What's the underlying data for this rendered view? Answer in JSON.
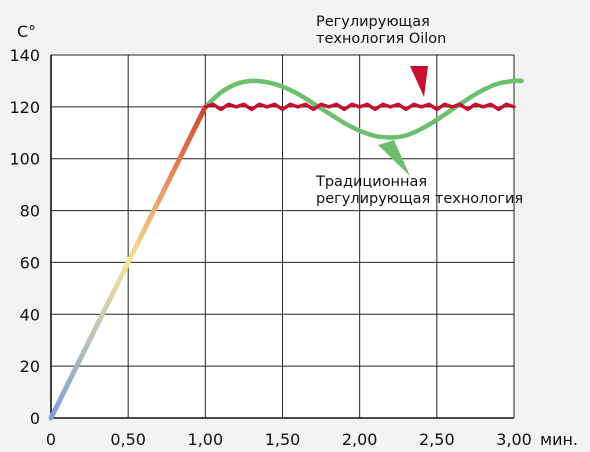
{
  "chart_data": {
    "type": "line",
    "ylabel": "C°",
    "xunit": "мин.",
    "xlim": [
      0,
      3.0
    ],
    "ylim": [
      0,
      140
    ],
    "x_ticks": [
      0,
      0.5,
      1.0,
      1.5,
      2.0,
      2.5,
      3.0
    ],
    "x_tick_labels": [
      "0",
      "0,50",
      "1,00",
      "1,50",
      "2,00",
      "2,50",
      "3,00"
    ],
    "y_ticks": [
      0,
      20,
      40,
      60,
      80,
      100,
      120,
      140
    ],
    "y_tick_labels": [
      "0",
      "20",
      "40",
      "60",
      "80",
      "100",
      "120",
      "140"
    ],
    "grid": true,
    "colors": {
      "oilon": "#c8102e",
      "traditional": "#6cbf6c",
      "ramp_start": "#7f9fd6",
      "ramp_mid": "#f4e59a",
      "ramp_end": "#d2442c",
      "grid": "#222222",
      "plot_bg": "#ffffff"
    },
    "series": [
      {
        "key": "ramp",
        "x": [
          0,
          1.0
        ],
        "values": [
          0,
          120
        ]
      },
      {
        "key": "oilon",
        "name": "Регулирующая технология Oilon",
        "x": [
          1.0,
          1.05,
          1.1,
          1.15,
          1.2,
          1.25,
          1.3,
          1.35,
          1.4,
          1.45,
          1.5,
          1.55,
          1.6,
          1.65,
          1.7,
          1.75,
          1.8,
          1.85,
          1.9,
          1.95,
          2.0,
          2.05,
          2.1,
          2.15,
          2.2,
          2.25,
          2.3,
          2.35,
          2.4,
          2.45,
          2.5,
          2.55,
          2.6,
          2.65,
          2.7,
          2.75,
          2.8,
          2.85,
          2.9,
          2.95,
          3.0
        ],
        "values": [
          120,
          121,
          119,
          121,
          120,
          121,
          119,
          121,
          120,
          121,
          119,
          121,
          120,
          121,
          119,
          121,
          120,
          121,
          119,
          121,
          120,
          121,
          119,
          121,
          120,
          121,
          119,
          121,
          120,
          121,
          119,
          121,
          120,
          121,
          119,
          121,
          120,
          121,
          119,
          121,
          120
        ]
      },
      {
        "key": "traditional",
        "name": "Традиционная регулирующая технология",
        "x": [
          1.0,
          1.1,
          1.2,
          1.3,
          1.4,
          1.5,
          1.6,
          1.7,
          1.8,
          1.9,
          2.0,
          2.1,
          2.2,
          2.3,
          2.4,
          2.5,
          2.6,
          2.7,
          2.8,
          2.9,
          3.0,
          3.05
        ],
        "values": [
          120,
          125.5,
          128.8,
          130,
          129.5,
          127.8,
          125,
          121.3,
          117.5,
          113.8,
          110.8,
          108.8,
          108.2,
          109,
          111.5,
          115,
          119,
          123,
          126.5,
          129,
          130,
          130
        ]
      }
    ],
    "annotations": {
      "oilon": [
        "Регулирующая",
        "технология Oilon"
      ],
      "traditional": [
        "Традиционная",
        "регулирующая технология"
      ]
    }
  }
}
